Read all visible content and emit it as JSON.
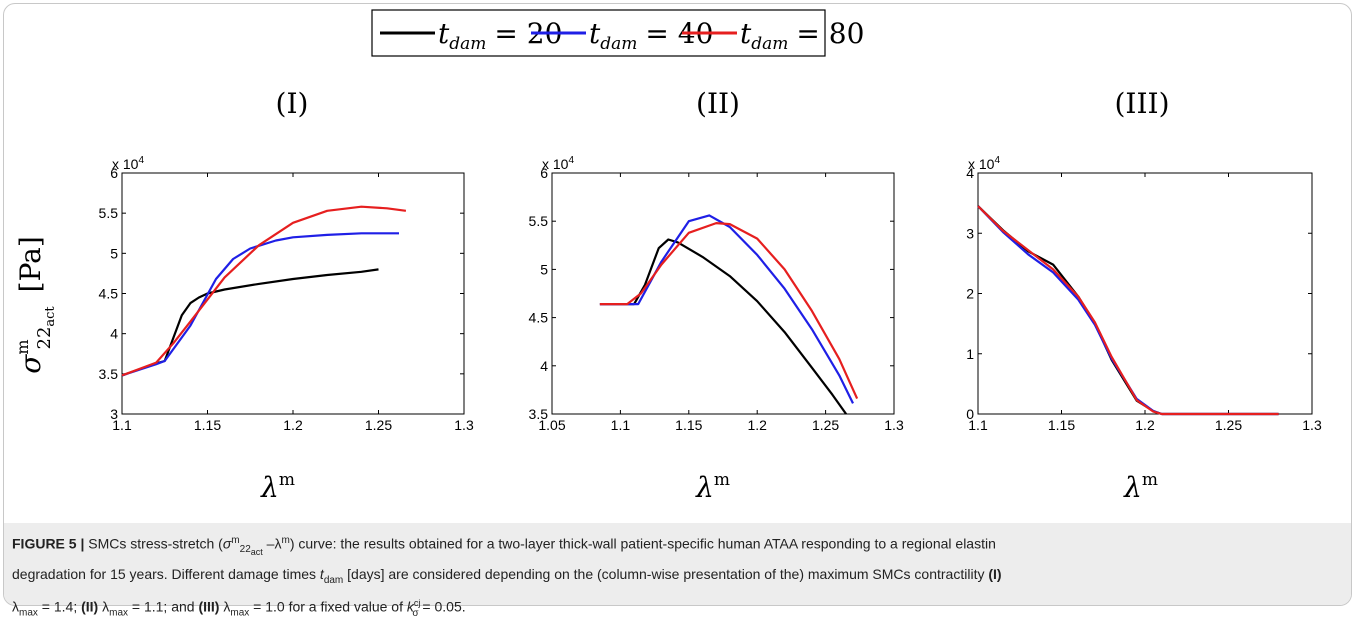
{
  "legend": {
    "entries": [
      {
        "name": "t_{dam} = 20",
        "base": "t",
        "sub": "dam",
        "value": "= 20",
        "color": "#000000"
      },
      {
        "name": "t_{dam} = 40",
        "base": "t",
        "sub": "dam",
        "value": "= 40",
        "color": "#1f1fe6"
      },
      {
        "name": "t_{dam} = 80",
        "base": "t",
        "sub": "dam",
        "value": "= 80",
        "color": "#e61f1f"
      }
    ]
  },
  "ylabel": {
    "sigma": "σ",
    "sup": "m",
    "sub": "22",
    "subsub": "act",
    "unit": "[Pa]"
  },
  "xlabel": {
    "lambda": "λ",
    "sup": "m"
  },
  "chart_data": [
    {
      "type": "line",
      "title": "(I)",
      "xlabel": "λm",
      "ylabel": "σm22act [Pa]",
      "xlim": [
        1.1,
        1.3
      ],
      "ylim": [
        3,
        6
      ],
      "exponent": "x 10",
      "exponent_power": "4",
      "xticks": [
        1.1,
        1.15,
        1.2,
        1.25,
        1.3
      ],
      "xtick_labels": [
        "1.1",
        "1.15",
        "1.2",
        "1.25",
        "1.3"
      ],
      "yticks": [
        3,
        3.5,
        4,
        4.5,
        5,
        5.5,
        6
      ],
      "ytick_labels": [
        "3",
        "3.5",
        "4",
        "4.5",
        "5",
        "5.5",
        "6"
      ],
      "series": [
        {
          "name": "t_{dam} = 20",
          "color": "#000000",
          "x": [
            1.1,
            1.12,
            1.125,
            1.135,
            1.14,
            1.145,
            1.15,
            1.16,
            1.18,
            1.2,
            1.22,
            1.24,
            1.25
          ],
          "y": [
            3.48,
            3.63,
            3.66,
            4.23,
            4.38,
            4.45,
            4.5,
            4.55,
            4.62,
            4.68,
            4.73,
            4.77,
            4.8
          ]
        },
        {
          "name": "t_{dam} = 40",
          "color": "#1f1fe6",
          "x": [
            1.1,
            1.12,
            1.125,
            1.14,
            1.155,
            1.165,
            1.175,
            1.19,
            1.2,
            1.22,
            1.24,
            1.262
          ],
          "y": [
            3.48,
            3.62,
            3.66,
            4.1,
            4.68,
            4.93,
            5.06,
            5.16,
            5.2,
            5.23,
            5.25,
            5.25
          ]
        },
        {
          "name": "t_{dam} = 80",
          "color": "#e61f1f",
          "x": [
            1.1,
            1.12,
            1.13,
            1.14,
            1.16,
            1.18,
            1.2,
            1.22,
            1.24,
            1.255,
            1.266
          ],
          "y": [
            3.48,
            3.64,
            3.88,
            4.15,
            4.7,
            5.1,
            5.38,
            5.53,
            5.58,
            5.56,
            5.53
          ]
        }
      ]
    },
    {
      "type": "line",
      "title": "(II)",
      "xlabel": "λm",
      "ylabel": "",
      "xlim": [
        1.05,
        1.3
      ],
      "ylim": [
        3.5,
        6
      ],
      "exponent": "x 10",
      "exponent_power": "4",
      "xticks": [
        1.05,
        1.1,
        1.15,
        1.2,
        1.25,
        1.3
      ],
      "xtick_labels": [
        "1.05",
        "1.1",
        "1.15",
        "1.2",
        "1.25",
        "1.3"
      ],
      "yticks": [
        3.5,
        4,
        4.5,
        5,
        5.5,
        6
      ],
      "ytick_labels": [
        "3.5",
        "4",
        "4.5",
        "5",
        "5.5",
        "6"
      ],
      "series": [
        {
          "name": "t_{dam} = 20",
          "color": "#000000",
          "x": [
            1.085,
            1.105,
            1.11,
            1.118,
            1.128,
            1.135,
            1.142,
            1.16,
            1.18,
            1.2,
            1.22,
            1.24,
            1.255,
            1.265
          ],
          "y": [
            4.64,
            4.64,
            4.64,
            4.84,
            5.22,
            5.31,
            5.28,
            5.13,
            4.93,
            4.67,
            4.35,
            3.98,
            3.7,
            3.5
          ]
        },
        {
          "name": "t_{dam} = 40",
          "color": "#1f1fe6",
          "x": [
            1.085,
            1.105,
            1.113,
            1.13,
            1.15,
            1.165,
            1.18,
            1.2,
            1.22,
            1.24,
            1.26,
            1.27
          ],
          "y": [
            4.64,
            4.64,
            4.64,
            5.08,
            5.5,
            5.56,
            5.44,
            5.15,
            4.8,
            4.38,
            3.9,
            3.61
          ]
        },
        {
          "name": "t_{dam} = 80",
          "color": "#e61f1f",
          "x": [
            1.085,
            1.105,
            1.115,
            1.13,
            1.15,
            1.17,
            1.18,
            1.2,
            1.22,
            1.24,
            1.26,
            1.273
          ],
          "y": [
            4.64,
            4.64,
            4.75,
            5.05,
            5.38,
            5.48,
            5.47,
            5.32,
            5.0,
            4.57,
            4.07,
            3.66
          ]
        }
      ]
    },
    {
      "type": "line",
      "title": "(III)",
      "xlabel": "λm",
      "ylabel": "",
      "xlim": [
        1.1,
        1.3
      ],
      "ylim": [
        0,
        4
      ],
      "exponent": "x 10",
      "exponent_power": "4",
      "xticks": [
        1.1,
        1.15,
        1.2,
        1.25,
        1.3
      ],
      "xtick_labels": [
        "1.1",
        "1.15",
        "1.2",
        "1.25",
        "1.3"
      ],
      "yticks": [
        0,
        1,
        2,
        3,
        4
      ],
      "ytick_labels": [
        "0",
        "1",
        "2",
        "3",
        "4"
      ],
      "series": [
        {
          "name": "t_{dam} = 20",
          "color": "#000000",
          "x": [
            1.1,
            1.115,
            1.13,
            1.145,
            1.16,
            1.17,
            1.18,
            1.195,
            1.205,
            1.21,
            1.23,
            1.25,
            1.28
          ],
          "y": [
            3.45,
            3.05,
            2.7,
            2.48,
            1.95,
            1.5,
            0.9,
            0.22,
            0.05,
            0,
            0,
            0,
            0
          ]
        },
        {
          "name": "t_{dam} = 40",
          "color": "#1f1fe6",
          "x": [
            1.1,
            1.115,
            1.13,
            1.145,
            1.16,
            1.17,
            1.18,
            1.195,
            1.205,
            1.21,
            1.23,
            1.25,
            1.28
          ],
          "y": [
            3.45,
            3.02,
            2.65,
            2.35,
            1.9,
            1.48,
            0.92,
            0.25,
            0.05,
            0,
            0,
            0,
            0
          ]
        },
        {
          "name": "t_{dam} = 80",
          "color": "#e61f1f",
          "x": [
            1.1,
            1.115,
            1.13,
            1.145,
            1.16,
            1.17,
            1.18,
            1.195,
            1.205,
            1.21,
            1.23,
            1.25,
            1.28
          ],
          "y": [
            3.45,
            3.04,
            2.72,
            2.4,
            1.95,
            1.52,
            0.95,
            0.23,
            0.04,
            0,
            0,
            0,
            0
          ]
        }
      ]
    }
  ],
  "caption": {
    "figure_label": "FIGURE 5 |",
    "line1_a": "SMCs stress-stretch (",
    "line1_sigma": "σ",
    "line1_sup": "m",
    "line1_sub": "22",
    "line1_subsub": "act",
    "line1_b": " –λ",
    "line1_sup2": "m",
    "line1_c": ") curve: the results obtained for a two-layer thick-wall patient-specific human ATAA responding to a regional elastin",
    "line2_a": "degradation for 15 years. Different damage times ",
    "line2_t": "t",
    "line2_sub": "dam",
    "line2_b": " [days] are considered depending on the (column-wise presentation of the) maximum SMCs contractility ",
    "line2_c": "(I)",
    "line3_a": "λ",
    "line3_sub1": "max",
    "line3_b": " = 1.4; ",
    "line3_c": "(II)",
    "line3_d": " λ",
    "line3_sub2": "max",
    "line3_e": " = 1.1; and ",
    "line3_f": "(III)",
    "line3_g": " λ",
    "line3_sub3": "max",
    "line3_h": " = 1.0 for a fixed value of ",
    "line3_k": "k",
    "line3_ksup": "cj",
    "line3_ksub": "σ",
    "line3_i": " = 0.05."
  }
}
